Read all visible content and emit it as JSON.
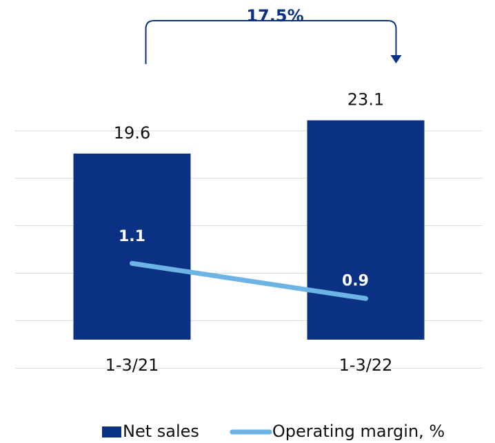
{
  "chart_data": {
    "type": "bar",
    "categories": [
      "1-3/21",
      "1-3/22"
    ],
    "series": [
      {
        "name": "Net sales",
        "type": "bar",
        "color": "#0a3183",
        "values": [
          19.6,
          23.1
        ]
      },
      {
        "name": "Operating margin, %",
        "type": "line",
        "color": "#6cb4e4",
        "axis": "y2",
        "values": [
          1.1,
          0.9
        ]
      }
    ],
    "ylim": [
      -4,
      26
    ],
    "yticks": [
      -3,
      2,
      7,
      12,
      17,
      22
    ],
    "y2lim": [
      0.45,
      2.07
    ],
    "grid": true,
    "legend": "bottom",
    "annotations": [
      {
        "text": "17.5%",
        "from": 0,
        "to": 1
      }
    ]
  }
}
